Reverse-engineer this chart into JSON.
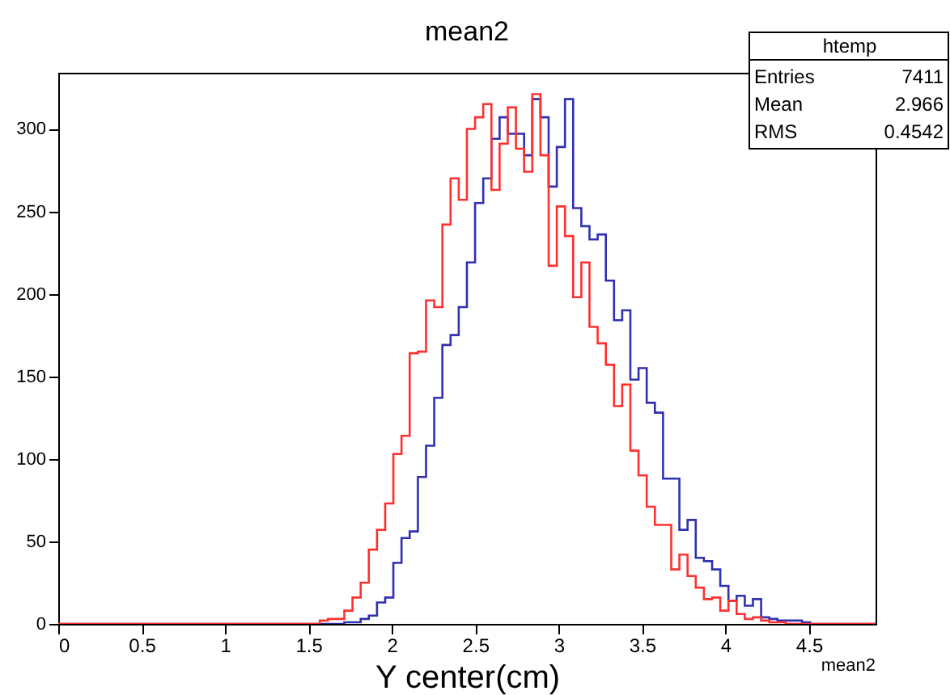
{
  "chart_data": {
    "type": "histogram",
    "title": "mean2",
    "xlabel": "Y center(cm)",
    "bins": [
      0,
      0.049,
      0.098,
      0.147,
      0.196,
      0.245,
      0.294,
      0.343,
      0.392,
      0.441,
      0.49,
      0.539,
      0.588,
      0.637,
      0.686,
      0.735,
      0.784,
      0.833,
      0.882,
      0.931,
      0.98,
      1.029,
      1.078,
      1.127,
      1.176,
      1.225,
      1.274,
      1.323,
      1.372,
      1.421,
      1.47,
      1.519,
      1.568,
      1.617,
      1.666,
      1.715,
      1.764,
      1.813,
      1.862,
      1.911,
      1.96,
      2.009,
      2.058,
      2.107,
      2.156,
      2.205,
      2.254,
      2.303,
      2.352,
      2.401,
      2.45,
      2.499,
      2.548,
      2.597,
      2.646,
      2.695,
      2.744,
      2.793,
      2.842,
      2.891,
      2.94,
      2.989,
      3.038,
      3.087,
      3.136,
      3.185,
      3.234,
      3.283,
      3.332,
      3.381,
      3.43,
      3.479,
      3.528,
      3.577,
      3.626,
      3.675,
      3.724,
      3.773,
      3.822,
      3.871,
      3.92,
      3.969,
      4.018,
      4.067,
      4.116,
      4.165,
      4.214,
      4.263,
      4.312,
      4.361,
      4.41,
      4.459,
      4.508,
      4.557,
      4.606,
      4.655,
      4.704,
      4.753,
      4.802,
      4.851,
      4.9
    ],
    "series": [
      {
        "color": "#3030b0",
        "values": [
          0,
          0,
          0,
          0,
          0,
          0,
          0,
          0,
          0,
          0,
          0,
          0,
          0,
          0,
          0,
          0,
          0,
          0,
          0,
          0,
          0,
          0,
          0,
          0,
          0,
          0,
          0,
          0,
          0,
          0,
          0,
          0,
          0,
          0,
          0,
          1,
          1,
          3,
          5,
          13,
          16,
          37,
          52,
          56,
          89,
          108,
          137,
          169,
          175,
          192,
          219,
          255,
          270,
          294,
          307,
          297,
          297,
          284,
          318,
          307,
          265,
          289,
          318,
          252,
          241,
          233,
          236,
          208,
          184,
          190,
          148,
          155,
          134,
          128,
          88,
          88,
          57,
          63,
          40,
          38,
          33,
          23,
          14,
          17,
          11,
          15,
          4,
          3,
          2,
          2,
          2,
          1,
          0,
          0,
          0,
          0,
          0,
          0,
          0,
          0
        ]
      },
      {
        "color": "#ff3030",
        "values": [
          0,
          0,
          0,
          0,
          0,
          0,
          0,
          0,
          0,
          0,
          0,
          0,
          0,
          0,
          0,
          0,
          0,
          0,
          0,
          0,
          0,
          0,
          0,
          0,
          0,
          0,
          0,
          0,
          0,
          0,
          0,
          0,
          2,
          3,
          3,
          8,
          16,
          25,
          45,
          57,
          73,
          103,
          114,
          164,
          165,
          196,
          192,
          242,
          270,
          257,
          300,
          307,
          315,
          263,
          291,
          313,
          288,
          274,
          321,
          284,
          217,
          253,
          235,
          198,
          219,
          180,
          170,
          157,
          132,
          145,
          105,
          90,
          71,
          60,
          60,
          33,
          42,
          29,
          22,
          15,
          16,
          8,
          14,
          6,
          3,
          4,
          2,
          1,
          1,
          0,
          0,
          0,
          0,
          0,
          0,
          0,
          0,
          0,
          0,
          0
        ]
      }
    ],
    "xlim": [
      0,
      4.9
    ],
    "xticks": [
      0,
      0.5,
      1,
      1.5,
      2,
      2.5,
      3,
      3.5,
      4,
      4.5
    ],
    "ylim": [
      0,
      334
    ],
    "yticks": [
      0,
      50,
      100,
      150,
      200,
      250,
      300
    ],
    "grid": false,
    "annotations": [
      "htemp",
      "Entries",
      "7411",
      "Mean",
      "2.966",
      "RMS",
      "0.4542",
      "mean2"
    ]
  }
}
